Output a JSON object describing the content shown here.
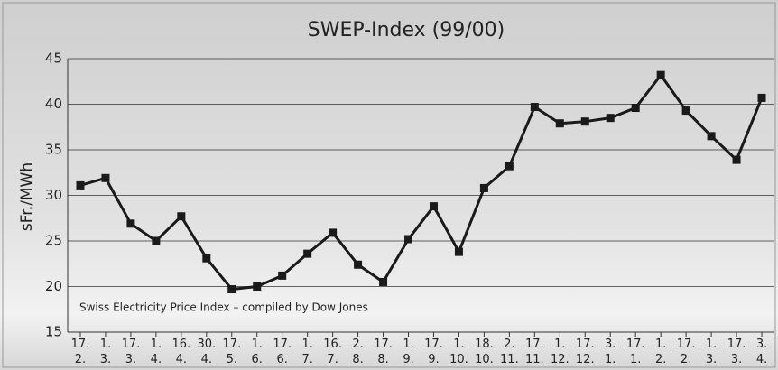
{
  "chart_data": {
    "type": "line",
    "title": "SWEP-Index (99/00)",
    "ylabel": "sFr./MWh",
    "annotation": "Swiss Electricity Price Index – compiled by Dow Jones",
    "categories": [
      "17. 2.",
      "1. 3.",
      "17. 3.",
      "1. 4.",
      "16. 4.",
      "30. 4.",
      "17. 5.",
      "1. 6.",
      "17. 6.",
      "1. 7.",
      "16. 7.",
      "2. 8.",
      "17. 8.",
      "1. 9.",
      "17. 9.",
      "1. 10.",
      "18. 10.",
      "2. 11.",
      "17. 11.",
      "1. 12.",
      "17. 12.",
      "3. 1.",
      "17. 1.",
      "1. 2.",
      "17. 2.",
      "1. 3.",
      "17. 3.",
      "3. 4."
    ],
    "values": [
      31.1,
      31.9,
      26.9,
      25.0,
      27.7,
      23.1,
      19.7,
      20.0,
      21.2,
      23.6,
      25.9,
      22.4,
      20.5,
      25.2,
      28.8,
      23.8,
      30.8,
      33.2,
      39.7,
      37.9,
      38.1,
      38.5,
      39.6,
      43.2,
      39.3,
      36.5,
      33.9,
      40.7
    ],
    "color": "#1a1a1a",
    "ylim": [
      15,
      45
    ],
    "yticks": [
      15,
      20,
      25,
      30,
      35,
      40,
      45
    ],
    "grid": true
  }
}
